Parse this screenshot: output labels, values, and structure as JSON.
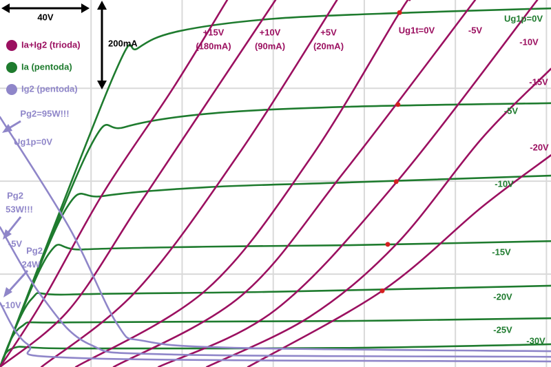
{
  "chart_data": {
    "type": "line",
    "xlim": [
      0,
      242
    ],
    "ylim": [
      0,
      790
    ],
    "xticks": [
      40,
      80,
      120,
      160,
      200,
      240
    ],
    "yticks": [
      200,
      400,
      600
    ],
    "grid": true,
    "scale_x_label": "40V",
    "scale_y_label": "200mA",
    "legend": [
      {
        "name": "Ia+Ig2 (trioda)",
        "color": "#9b1060"
      },
      {
        "name": "Ia (pentoda)",
        "color": "#1e7b2e"
      },
      {
        "name": "Ig2 (pentoda)",
        "color": "#8f86c9"
      }
    ],
    "series": [
      {
        "name": "Ug1p=0V",
        "color": "#1e7b2e",
        "x": [
          0,
          49.9,
          60.5,
          78.7,
          121,
          181.5,
          242
        ],
        "values": [
          0,
          627,
          686,
          723,
          750,
          763,
          772
        ]
      },
      {
        "name": "-5V",
        "color": "#1e7b2e",
        "x": [
          0,
          39.3,
          54.5,
          90.8,
          151,
          242
        ],
        "values": [
          0,
          471,
          516,
          545,
          560,
          568
        ]
      },
      {
        "name": "-10V",
        "color": "#1e7b2e",
        "x": [
          0,
          28.7,
          45.4,
          90.8,
          151,
          242
        ],
        "values": [
          0,
          338,
          368,
          387,
          397,
          412
        ]
      },
      {
        "name": "-15V",
        "color": "#1e7b2e",
        "x": [
          0,
          21.2,
          36.3,
          90.8,
          151,
          242
        ],
        "values": [
          0,
          242,
          253,
          259,
          262,
          271
        ]
      },
      {
        "name": "-20V",
        "color": "#1e7b2e",
        "x": [
          0,
          13.6,
          30.3,
          121,
          242
        ],
        "values": [
          0,
          145,
          156,
          162,
          175
        ]
      },
      {
        "name": "-25V",
        "color": "#1e7b2e",
        "x": [
          0,
          9.1,
          30.3,
          151,
          242
        ],
        "values": [
          0,
          86,
          96,
          99,
          105
        ]
      },
      {
        "name": "-30V",
        "color": "#1e7b2e",
        "x": [
          0,
          6,
          30.3,
          151,
          242
        ],
        "values": [
          0,
          41,
          40,
          41,
          49
        ]
      },
      {
        "name": "+15V",
        "note": "(180mA)",
        "color": "#9b1060",
        "x": [
          0,
          18.2,
          45.4,
          75.6,
          99.8
        ],
        "values": [
          0,
          138,
          375,
          597,
          790
        ]
      },
      {
        "name": "+10V",
        "note": "(90mA)",
        "color": "#9b1060",
        "x": [
          0,
          30.3,
          60.5,
          90.8,
          121
        ],
        "values": [
          0,
          123,
          345,
          568,
          790
        ]
      },
      {
        "name": "+5V",
        "note": "(20mA)",
        "color": "#9b1060",
        "x": [
          18.2,
          60.5,
          105.9,
          148
        ],
        "values": [
          0,
          167,
          466,
          790
        ]
      },
      {
        "name": "Ug1t=0V",
        "color": "#9b1060",
        "x": [
          33.3,
          90.8,
          136,
          175.5,
          180
        ],
        "values": [
          0,
          167,
          447,
          763,
          790
        ]
      },
      {
        "name": "-5V",
        "color": "#9b1060",
        "x": [
          49.9,
          105.9,
          151,
          208.7
        ],
        "values": [
          0,
          153,
          419,
          790
        ]
      },
      {
        "name": "-10V",
        "color": "#9b1060",
        "x": [
          69.6,
          121,
          174,
          236
        ],
        "values": [
          0,
          123,
          397,
          790
        ]
      },
      {
        "name": "-15V",
        "color": "#9b1060",
        "x": [
          90.8,
          136,
          174,
          211.8,
          242
        ],
        "values": [
          0,
          108,
          264,
          493,
          642
        ]
      },
      {
        "name": "-20V",
        "color": "#9b1060",
        "x": [
          108.9,
          167.9,
          211.8,
          242
        ],
        "values": [
          0,
          164,
          345,
          456
        ]
      },
      {
        "name": "Ug1p=0V",
        "color": "#8f86c9",
        "x": [
          0,
          30.3,
          51.4,
          63.5,
          105.9,
          242
        ],
        "values": [
          538,
          301,
          93,
          56,
          41,
          34
        ]
      },
      {
        "name": "-5V",
        "color": "#8f86c9",
        "x": [
          0,
          18.2,
          39.3,
          75.6,
          242
        ],
        "values": [
          301,
          153,
          49,
          27,
          22
        ]
      },
      {
        "name": "-10V",
        "color": "#8f86c9",
        "x": [
          0,
          12.1,
          36.3,
          242
        ],
        "values": [
          138,
          49,
          19,
          12
        ]
      }
    ],
    "markers": {
      "color": "#d42020",
      "x": [
        175.5,
        174.8,
        174,
        170.3,
        167.9
      ],
      "values": [
        763,
        565,
        399,
        264,
        164
      ]
    },
    "annotations": [
      [
        "Pg2=95W!!!"
      ],
      [
        "Pg2",
        "53W!!!"
      ],
      [
        "Pg2",
        "24W"
      ]
    ]
  }
}
